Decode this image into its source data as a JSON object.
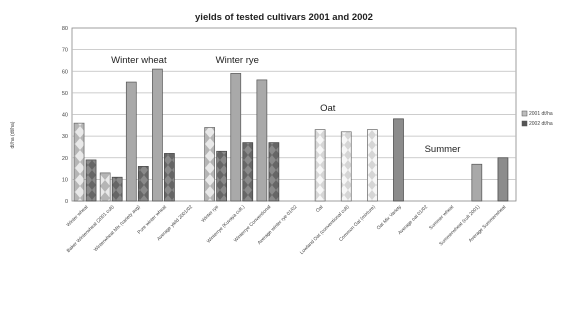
{
  "chart_data": {
    "type": "bar",
    "title": "yields of tested cultivars 2001 and 2002",
    "ylabel": "dt/ha (dt/ha)",
    "xlabel": "",
    "ylim": [
      0,
      80
    ],
    "yticks": [
      0,
      10,
      20,
      30,
      40,
      50,
      60,
      70,
      80
    ],
    "grid": true,
    "legend_position": "right",
    "categories": [
      "Winter wheat",
      "Baker Winterwheat (2001 cult)",
      "Winterwheat Mix (variety avg)",
      "Pure winter wheat",
      "Average yield 2001/02",
      "Winter rye",
      "Winterrye (Kuvaya cult.)",
      "Winterrye Conventional",
      "Average winter rye 01/02",
      "Oat",
      "Lowland Oat (conventional cult)",
      "Common Oat (mixture)",
      "Oat Mix Variety",
      "Average oat 01/02",
      "Summer wheat",
      "Summerwheat (cult 2001)",
      "Average Summerwheat"
    ],
    "series": [
      {
        "name": "2001 dt/ha",
        "color": "#bdbdbd",
        "values": [
          36,
          13,
          55,
          61,
          null,
          34,
          59,
          56,
          null,
          33,
          32,
          33,
          null,
          null,
          null,
          17,
          null
        ]
      },
      {
        "name": "2002 dt/ha",
        "color": "#555555",
        "values": [
          19,
          11,
          16,
          22,
          null,
          23,
          27,
          27,
          null,
          null,
          null,
          null,
          38,
          null,
          null,
          null,
          20
        ]
      }
    ],
    "group_labels": [
      "Winter wheat",
      "Winter rye",
      "Oat",
      "Summer"
    ]
  }
}
